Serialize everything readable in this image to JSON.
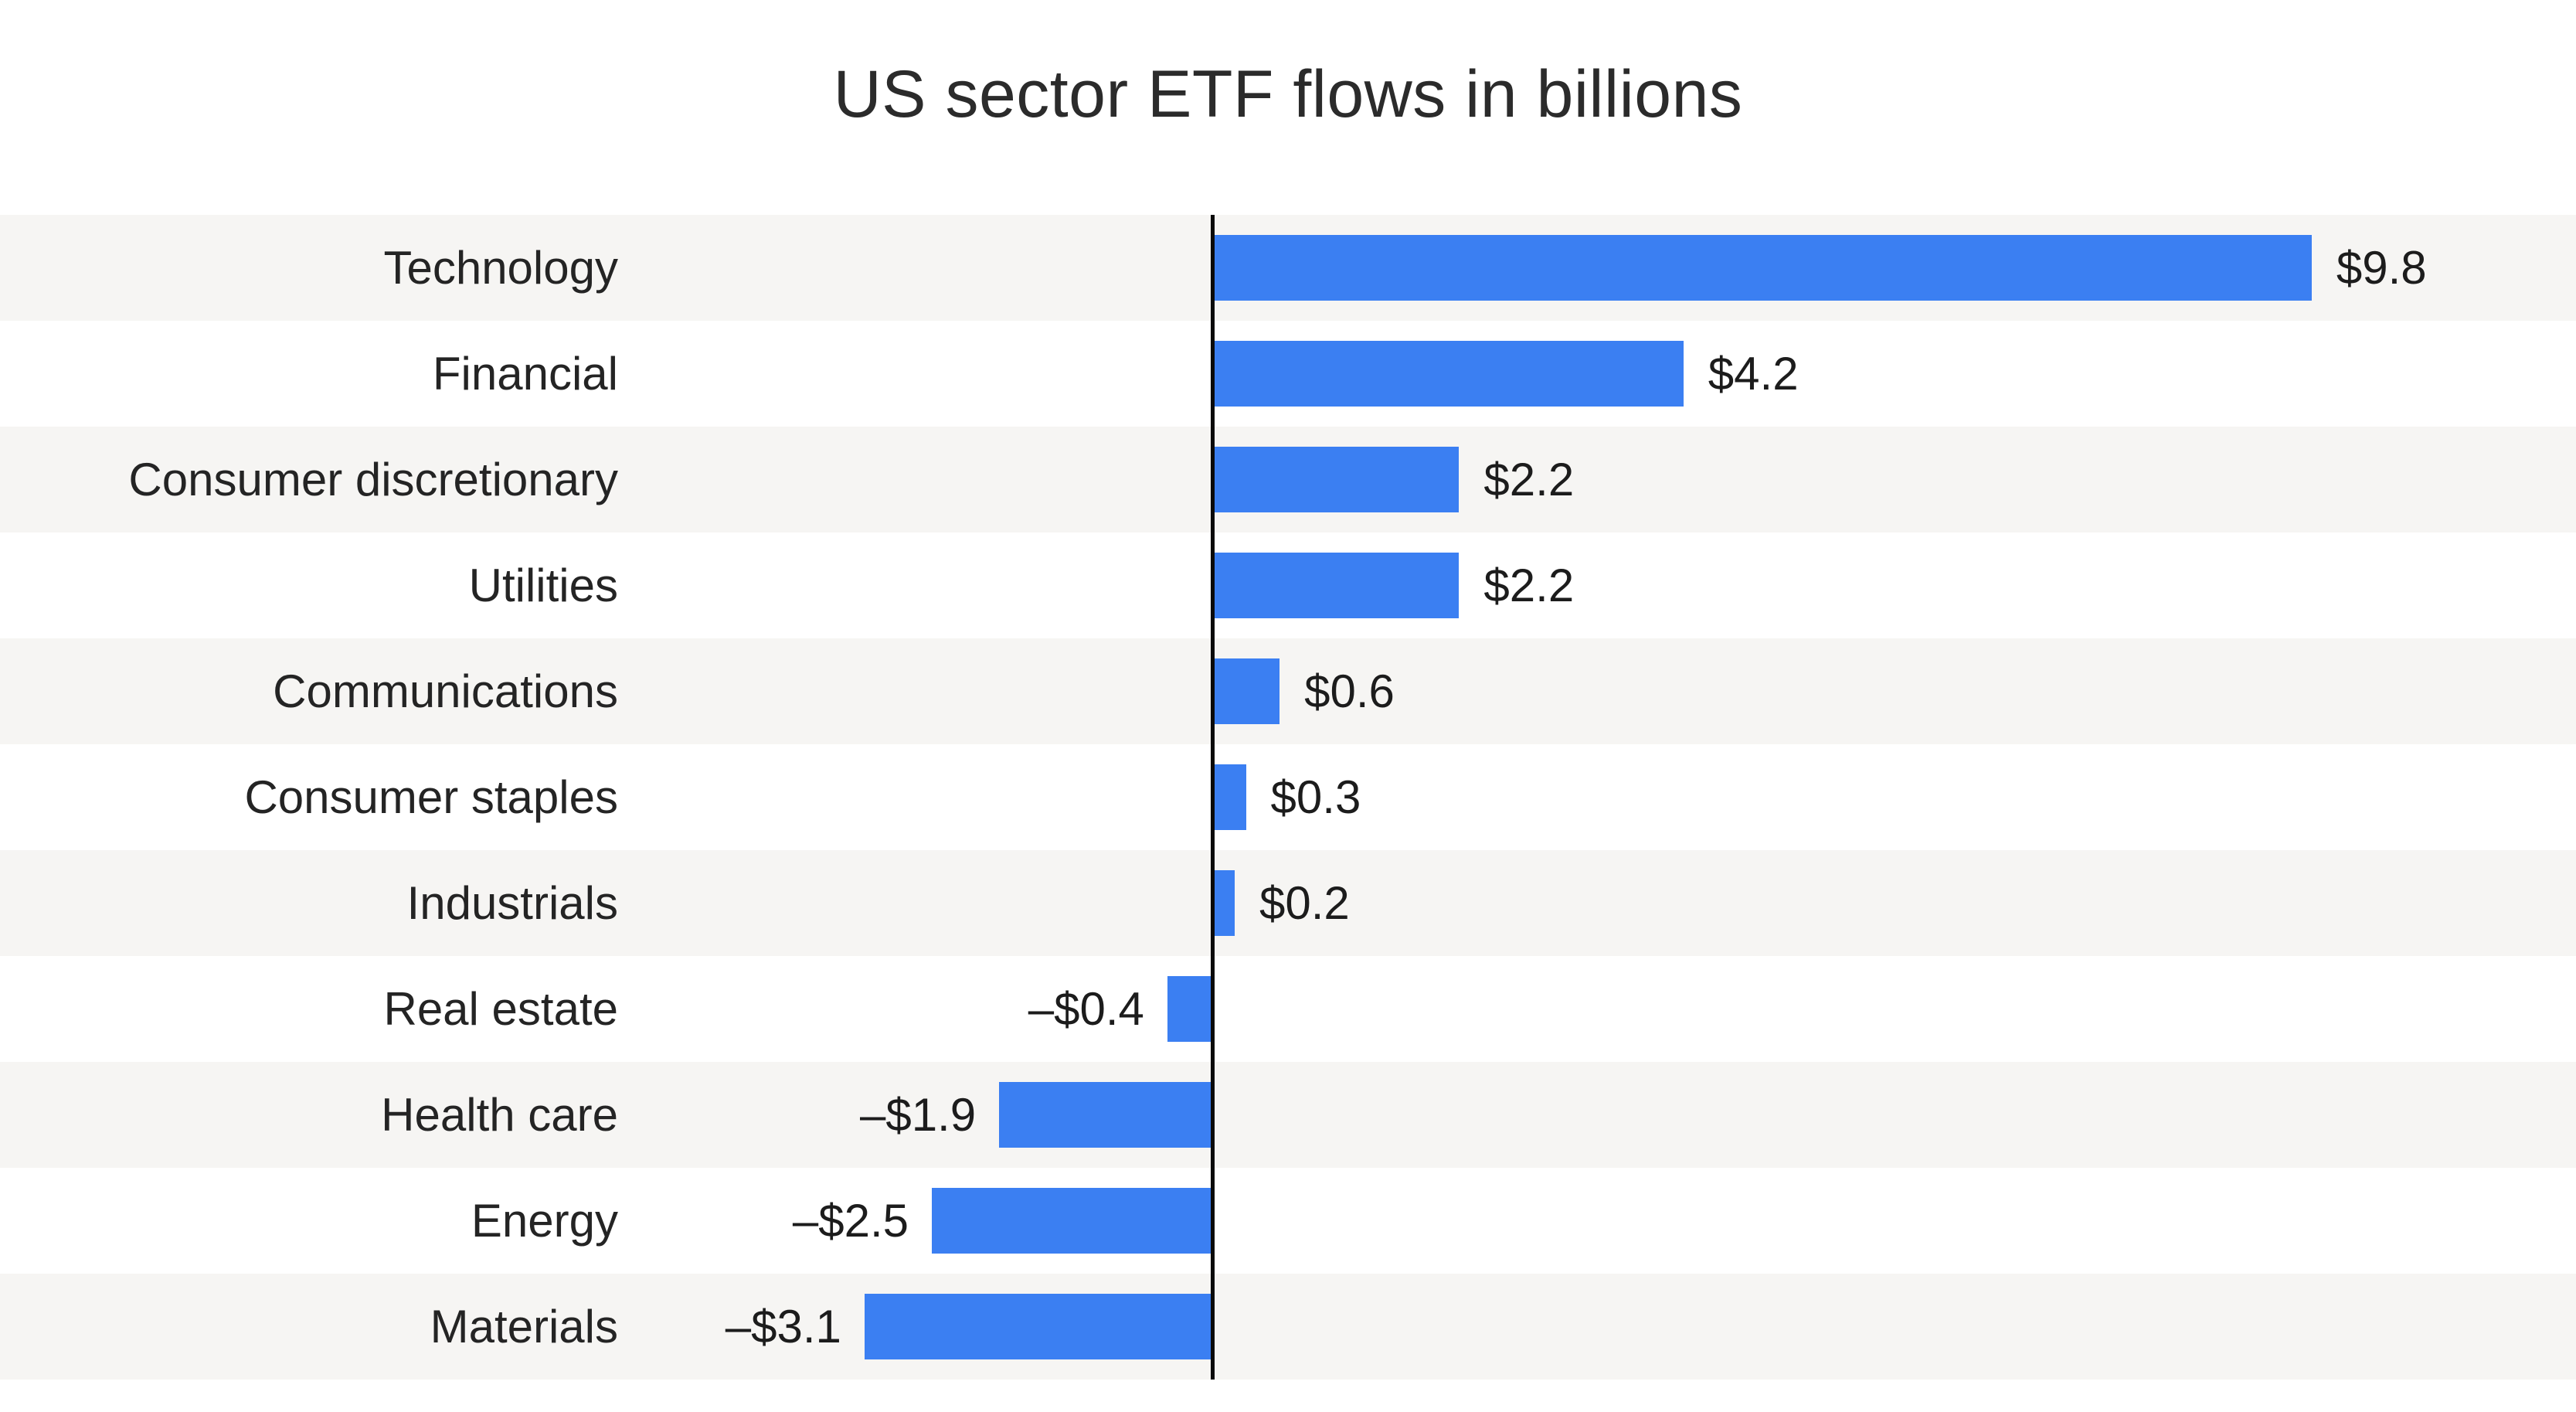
{
  "chart_data": {
    "type": "bar",
    "orientation": "horizontal",
    "title": "US sector ETF flows in billions",
    "xlabel": "",
    "ylabel": "",
    "unit": "USD billions",
    "categories": [
      "Technology",
      "Financial",
      "Consumer discretionary",
      "Utilities",
      "Communications",
      "Consumer staples",
      "Industrials",
      "Real estate",
      "Health care",
      "Energy",
      "Materials"
    ],
    "values": [
      9.8,
      4.2,
      2.2,
      2.2,
      0.6,
      0.3,
      0.2,
      -0.4,
      -1.9,
      -2.5,
      -3.1
    ],
    "value_labels": [
      "$9.8",
      "$4.2",
      "$2.2",
      "$2.2",
      "$0.6",
      "$0.3",
      "$0.2",
      "–$0.4",
      "–$1.9",
      "–$2.5",
      "–$3.1"
    ],
    "legend": "none",
    "grid": "off",
    "row_shading": "alternating, first row shaded",
    "layout": {
      "zero_axis_fraction": 0.4706,
      "fraction_per_unit": 0.04355,
      "xlim_implied": [
        -10.8,
        12.2
      ]
    },
    "colors": {
      "bar": "#3B7FF2",
      "row_stripe": "#F6F5F3",
      "axis": "#0A0A0A",
      "text": "#242424",
      "background": "#FFFFFF"
    }
  }
}
